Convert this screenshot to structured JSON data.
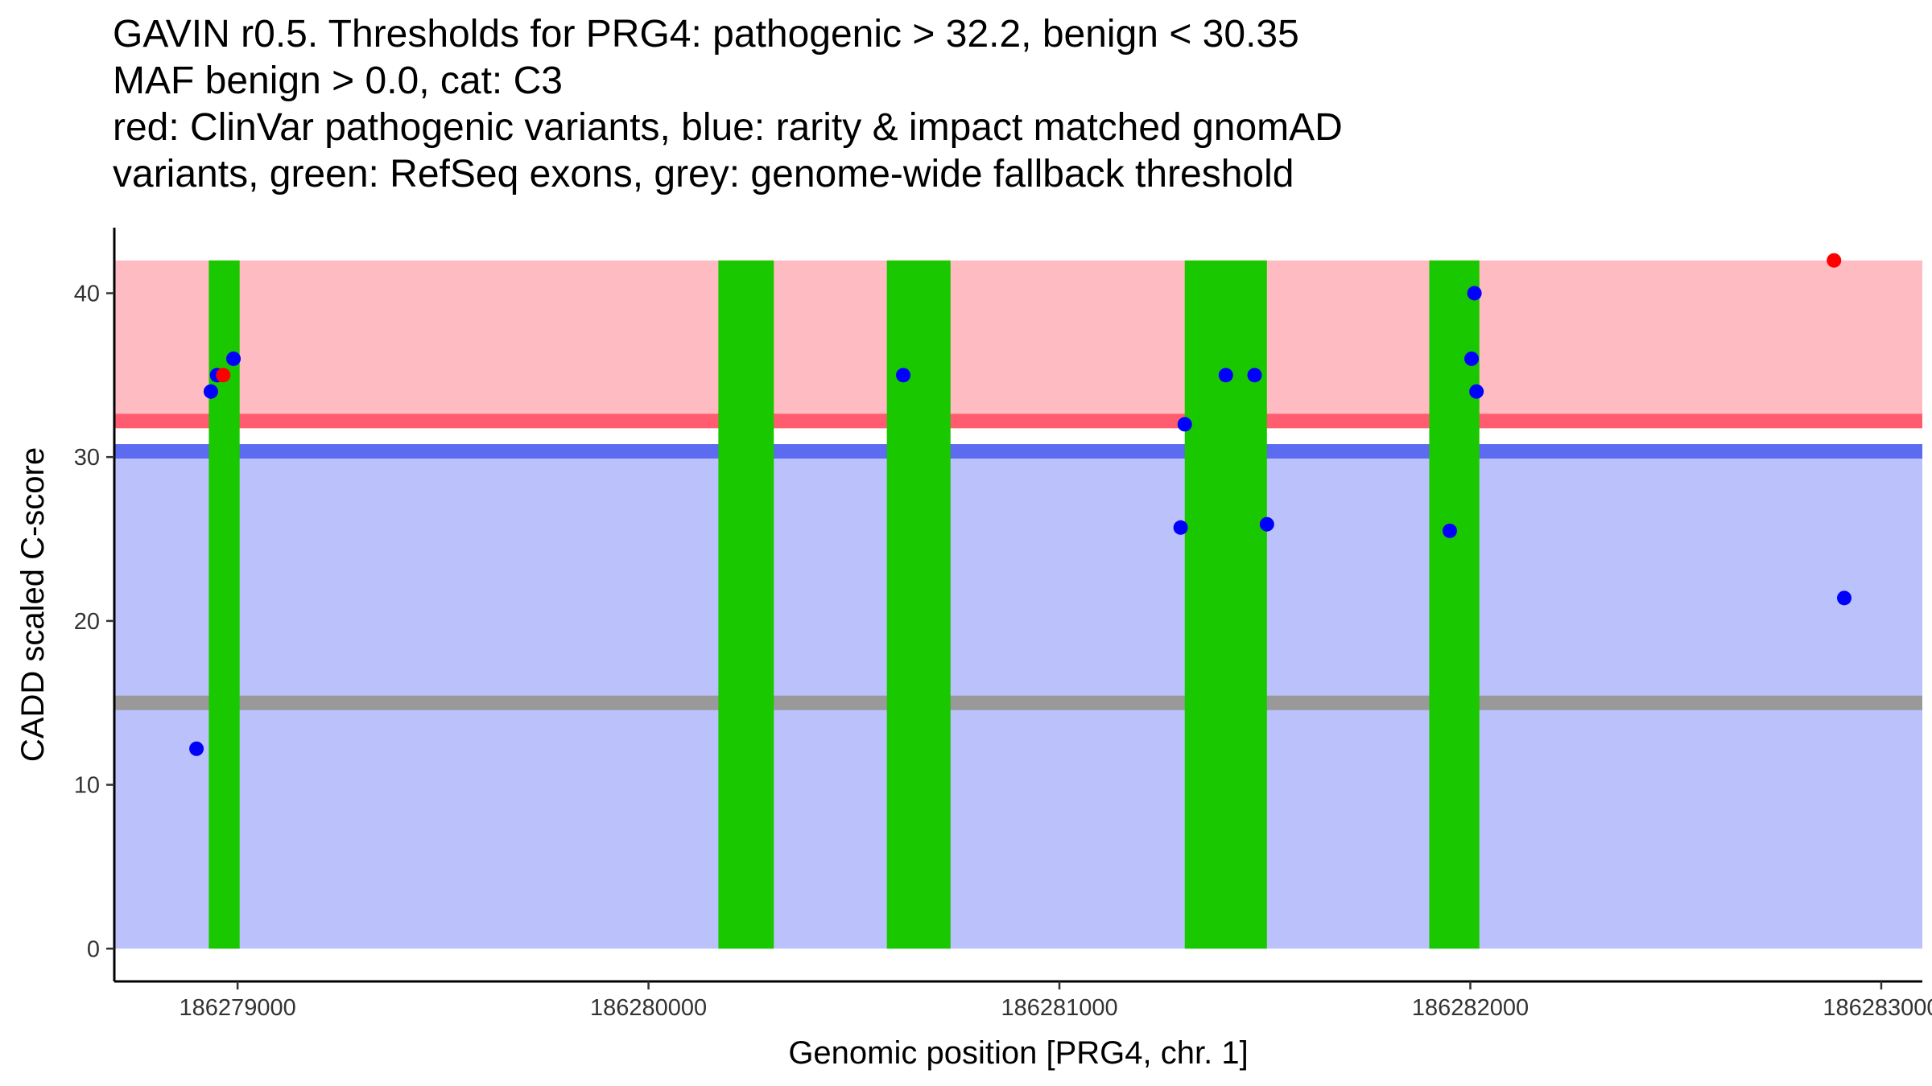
{
  "chart_data": {
    "type": "scatter",
    "title_lines": [
      "GAVIN r0.5. Thresholds for PRG4: pathogenic > 32.2, benign < 30.35",
      "MAF benign > 0.0, cat: C3",
      "red: ClinVar pathogenic variants, blue: rarity & impact matched gnomAD",
      "variants, green: RefSeq exons, grey: genome-wide fallback threshold"
    ],
    "xlabel": "Genomic position [PRG4, chr. 1]",
    "ylabel": "CADD scaled C-score",
    "xlim": [
      186278700,
      186283100
    ],
    "ylim": [
      -2,
      44
    ],
    "x_ticks": [
      186279000,
      186280000,
      186281000,
      186282000,
      186283000
    ],
    "y_ticks": [
      0,
      10,
      20,
      30,
      40
    ],
    "pathogenic_threshold": 32.2,
    "benign_threshold": 30.35,
    "fallback_threshold": 15,
    "score_max": 42,
    "exons": [
      [
        186278930,
        186279005
      ],
      [
        186280170,
        186280305
      ],
      [
        186280580,
        186280735
      ],
      [
        186281305,
        186281505
      ],
      [
        186281900,
        186282022
      ]
    ],
    "series": [
      {
        "name": "ClinVar pathogenic variants",
        "color": "#ff0000",
        "points": [
          {
            "x": 186278965,
            "y": 35
          },
          {
            "x": 186282885,
            "y": 42
          }
        ]
      },
      {
        "name": "rarity & impact matched gnomAD variants",
        "color": "#0000ff",
        "points": [
          {
            "x": 186278900,
            "y": 12.2
          },
          {
            "x": 186278935,
            "y": 34
          },
          {
            "x": 186278950,
            "y": 35
          },
          {
            "x": 186278990,
            "y": 36
          },
          {
            "x": 186280620,
            "y": 35
          },
          {
            "x": 186281295,
            "y": 25.7
          },
          {
            "x": 186281305,
            "y": 32
          },
          {
            "x": 186281405,
            "y": 35
          },
          {
            "x": 186281475,
            "y": 35
          },
          {
            "x": 186281505,
            "y": 25.9
          },
          {
            "x": 186281950,
            "y": 25.5
          },
          {
            "x": 186282003,
            "y": 36
          },
          {
            "x": 186282010,
            "y": 40
          },
          {
            "x": 186282015,
            "y": 34
          },
          {
            "x": 186282910,
            "y": 21.4
          }
        ]
      }
    ],
    "colors": {
      "pathogenic_region": "#ffbbc2",
      "pathogenic_line": "#ff5c70",
      "benign_region": "#bbc2fb",
      "benign_line": "#5c6bef",
      "fallback_line": "#999999",
      "exon": "#1ac800"
    }
  }
}
